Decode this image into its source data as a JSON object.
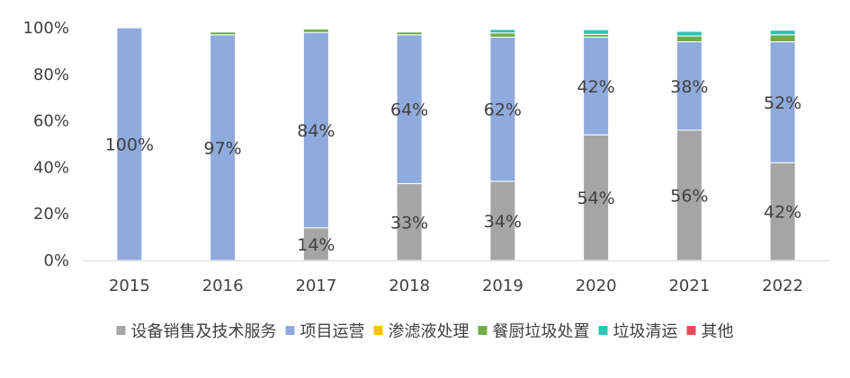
{
  "chart_data": {
    "type": "bar",
    "stacked": true,
    "title": "",
    "xlabel": "",
    "ylabel": "",
    "ylim": [
      0,
      100
    ],
    "yticks": [
      "0%",
      "20%",
      "40%",
      "60%",
      "80%",
      "100%"
    ],
    "categories": [
      "2015",
      "2016",
      "2017",
      "2018",
      "2019",
      "2020",
      "2021",
      "2022"
    ],
    "series": [
      {
        "name": "设备销售及技术服务",
        "color": "#a5a5a5",
        "values": [
          0,
          0,
          14,
          33,
          34,
          54,
          56,
          42
        ],
        "labels": [
          "",
          "",
          "14%",
          "33%",
          "34%",
          "54%",
          "56%",
          "42%"
        ]
      },
      {
        "name": "项目运营",
        "color": "#8faadc",
        "values": [
          100,
          97,
          84,
          64,
          62,
          42,
          38,
          52
        ],
        "labels": [
          "100%",
          "97%",
          "84%",
          "64%",
          "62%",
          "42%",
          "38%",
          "52%"
        ]
      },
      {
        "name": "渗滤液处理",
        "color": "#ffc000",
        "values": [
          0,
          0,
          0,
          0,
          0,
          0,
          0,
          0
        ],
        "labels": [
          "",
          "",
          "",
          "",
          "",
          "",
          "",
          ""
        ]
      },
      {
        "name": "餐厨垃圾处置",
        "color": "#70ad47",
        "values": [
          0,
          1.2,
          1.5,
          1.2,
          1.8,
          1.2,
          2.5,
          3
        ],
        "labels": [
          "",
          "",
          "",
          "",
          "",
          "",
          "",
          ""
        ]
      },
      {
        "name": "垃圾清运",
        "color": "#2ec4b6",
        "values": [
          0,
          0,
          0,
          0,
          1.5,
          2,
          2,
          2
        ],
        "labels": [
          "",
          "",
          "",
          "",
          "",
          "",
          "",
          ""
        ]
      },
      {
        "name": "其他",
        "color": "#e84c5c",
        "values": [
          0,
          0,
          0,
          0,
          0,
          0,
          0,
          0
        ],
        "labels": [
          "",
          "",
          "",
          "",
          "",
          "",
          "",
          ""
        ]
      }
    ],
    "legend_position": "bottom",
    "grid": false
  }
}
